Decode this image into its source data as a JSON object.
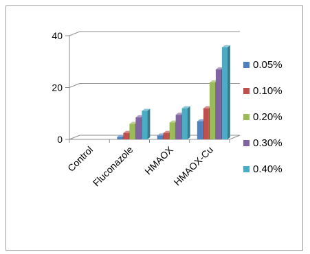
{
  "chart_data": {
    "type": "bar",
    "style": "3d-clustered-column",
    "title": "",
    "xlabel": "",
    "ylabel": "",
    "categories": [
      "Control",
      "Fluconazole",
      "HMAOX",
      "HMAOX-Cu"
    ],
    "ylim": [
      0,
      40
    ],
    "yticks": [
      0,
      20,
      40
    ],
    "grid": true,
    "legend_position": "right",
    "series": [
      {
        "name": "0.05%",
        "color": "#4f81bd",
        "values": [
          0,
          1.0,
          1.5,
          7.0
        ]
      },
      {
        "name": "0.10%",
        "color": "#c0504d",
        "values": [
          0,
          2.5,
          2.5,
          12.0
        ]
      },
      {
        "name": "0.20%",
        "color": "#9bbb59",
        "values": [
          0,
          6.0,
          6.5,
          22.0
        ]
      },
      {
        "name": "0.30%",
        "color": "#8064a2",
        "values": [
          0,
          8.5,
          9.5,
          27.0
        ]
      },
      {
        "name": "0.40%",
        "color": "#4bacc6",
        "values": [
          0,
          11.0,
          12.0,
          35.5
        ]
      }
    ]
  }
}
